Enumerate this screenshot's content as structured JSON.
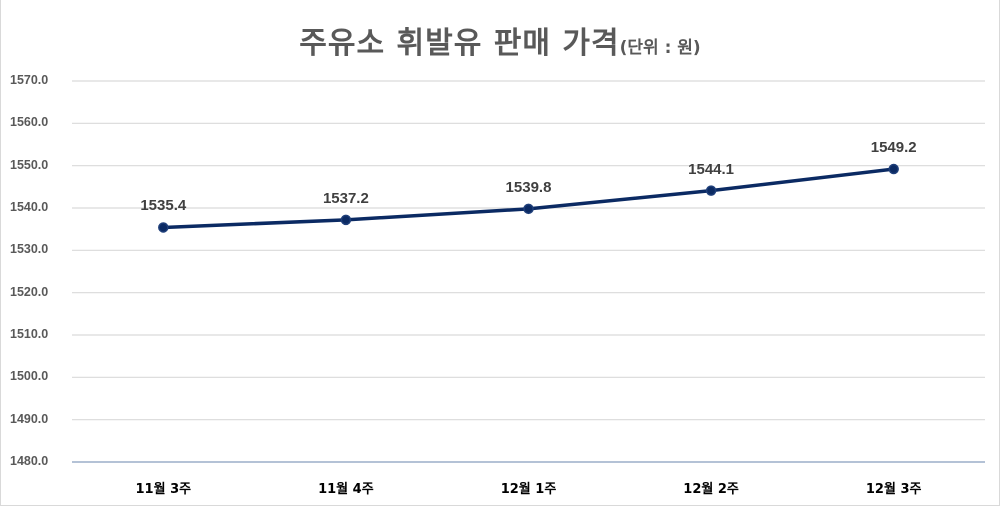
{
  "chart": {
    "title_main": "주유소 휘발유 판매 가격",
    "title_unit": "(단위 : 원)",
    "colors": {
      "line": "#0b2a63",
      "grid": "#d9d9d9",
      "axis": "#b4c2d6",
      "text": "#595959"
    }
  },
  "yticks": [
    "1570.0",
    "1560.0",
    "1550.0",
    "1540.0",
    "1530.0",
    "1520.0",
    "1510.0",
    "1500.0",
    "1490.0",
    "1480.0"
  ],
  "xticks": [
    "11월 3주",
    "11월 4주",
    "12월 1주",
    "12월 2주",
    "12월 3주"
  ],
  "labels": [
    "1535.4",
    "1537.2",
    "1539.8",
    "1544.1",
    "1549.2"
  ],
  "chart_data": {
    "type": "line",
    "title": "주유소 휘발유 판매 가격(단위 : 원)",
    "xlabel": "",
    "ylabel": "",
    "categories": [
      "11월 3주",
      "11월 4주",
      "12월 1주",
      "12월 2주",
      "12월 3주"
    ],
    "series": [
      {
        "name": "휘발유 판매 가격",
        "values": [
          1535.4,
          1537.2,
          1539.8,
          1544.1,
          1549.2
        ]
      }
    ],
    "ylim": [
      1480,
      1570
    ],
    "yticks": [
      1480,
      1490,
      1500,
      1510,
      1520,
      1530,
      1540,
      1550,
      1560,
      1570
    ],
    "grid": true,
    "legend": "none",
    "data_labels": true
  }
}
